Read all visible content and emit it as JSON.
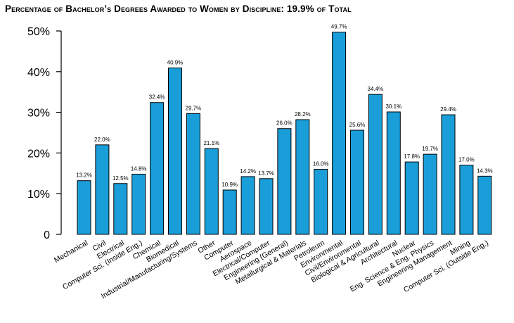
{
  "chart_data": {
    "type": "bar",
    "title": "Percentage of Bachelor’s Degrees Awarded to Women by Discipline: 19.9% of Total",
    "xlabel": "",
    "ylabel": "",
    "ylim": [
      0,
      50
    ],
    "yticks": [
      "0",
      "10%",
      "20%",
      "30%",
      "40%",
      "50%"
    ],
    "ytick_values": [
      0,
      10,
      20,
      30,
      40,
      50
    ],
    "grid": false,
    "bar_color": "#1a9ed9",
    "categories": [
      "Mechanical",
      "Civil",
      "Electrical",
      "Computer Sci. (Inside Eng.)",
      "Chemical",
      "Biomedical",
      "Industrial/Manufacturing/Systems",
      "Other",
      "Computer",
      "Aerospace",
      "Electrical/Computer",
      "Engineering (General)",
      "Metallurgical & Materials",
      "Petroleum",
      "Environmental",
      "Civil/Environmental",
      "Biological & Agricultural",
      "Architectural",
      "Nuclear",
      "Eng. Science & Eng. Physics",
      "Engineering Management",
      "Mining",
      "Computer Sci. (Outside Eng.)"
    ],
    "values": [
      13.2,
      22.0,
      12.5,
      14.8,
      32.4,
      40.9,
      29.7,
      21.1,
      10.9,
      14.2,
      13.7,
      26.0,
      28.2,
      16.0,
      49.7,
      25.6,
      34.4,
      30.1,
      17.8,
      19.7,
      29.4,
      17.0,
      14.3
    ],
    "value_labels": [
      "13.2%",
      "22.0%",
      "12.5%",
      "14.8%",
      "32.4%",
      "40.9%",
      "29.7%",
      "21.1%",
      "10.9%",
      "14.2%",
      "13.7%",
      "26.0%",
      "28.2%",
      "16.0%",
      "49.7%",
      "25.6%",
      "34.4%",
      "30.1%",
      "17.8%",
      "19.7%",
      "29.4%",
      "17.0%",
      "14.3%"
    ]
  }
}
